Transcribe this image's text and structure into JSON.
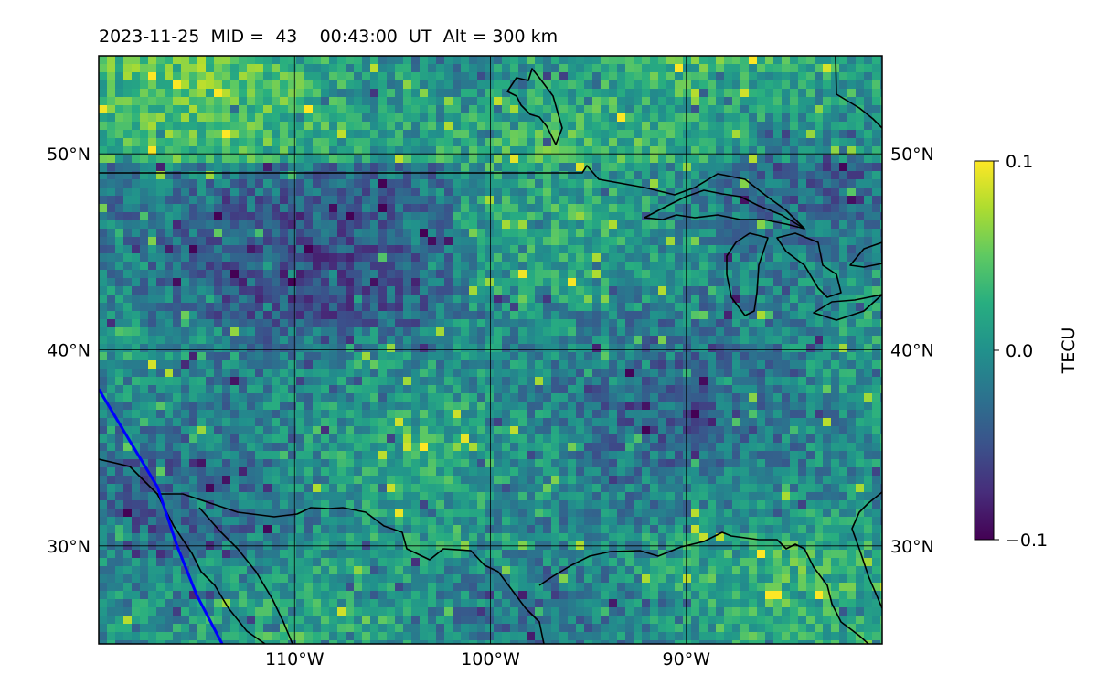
{
  "header": {
    "date": "2023-11-25",
    "mid_label": "MID =",
    "mid_value": "43",
    "time": "00:43:00",
    "time_unit": "UT",
    "alt_label": "Alt =",
    "alt_value": "300",
    "alt_unit": "km"
  },
  "map": {
    "projection": "equirectangular",
    "lon_range": [
      -120,
      -80
    ],
    "lat_range": [
      25,
      55
    ],
    "lat_ticks": [
      {
        "value": 30,
        "label": "30°N"
      },
      {
        "value": 40,
        "label": "40°N"
      },
      {
        "value": 50,
        "label": "50°N"
      }
    ],
    "lon_ticks": [
      {
        "value": -110,
        "label": "110°W"
      },
      {
        "value": -100,
        "label": "100°W"
      },
      {
        "value": -90,
        "label": "90°W"
      }
    ],
    "grid": true,
    "colormap": "viridis",
    "trajectory_color": "#0000ff",
    "trajectory": [
      [
        -120,
        38
      ],
      [
        -118.5,
        35.5
      ],
      [
        -117,
        33
      ],
      [
        -116,
        30
      ],
      [
        -115,
        27.5
      ],
      [
        -113.7,
        25
      ]
    ]
  },
  "colorbar": {
    "label": "TECU",
    "min": -0.1,
    "max": 0.1,
    "ticks": [
      {
        "value": 0.1,
        "label": "0.1"
      },
      {
        "value": 0.0,
        "label": "0.0"
      },
      {
        "value": -0.1,
        "label": "−0.1"
      }
    ]
  }
}
